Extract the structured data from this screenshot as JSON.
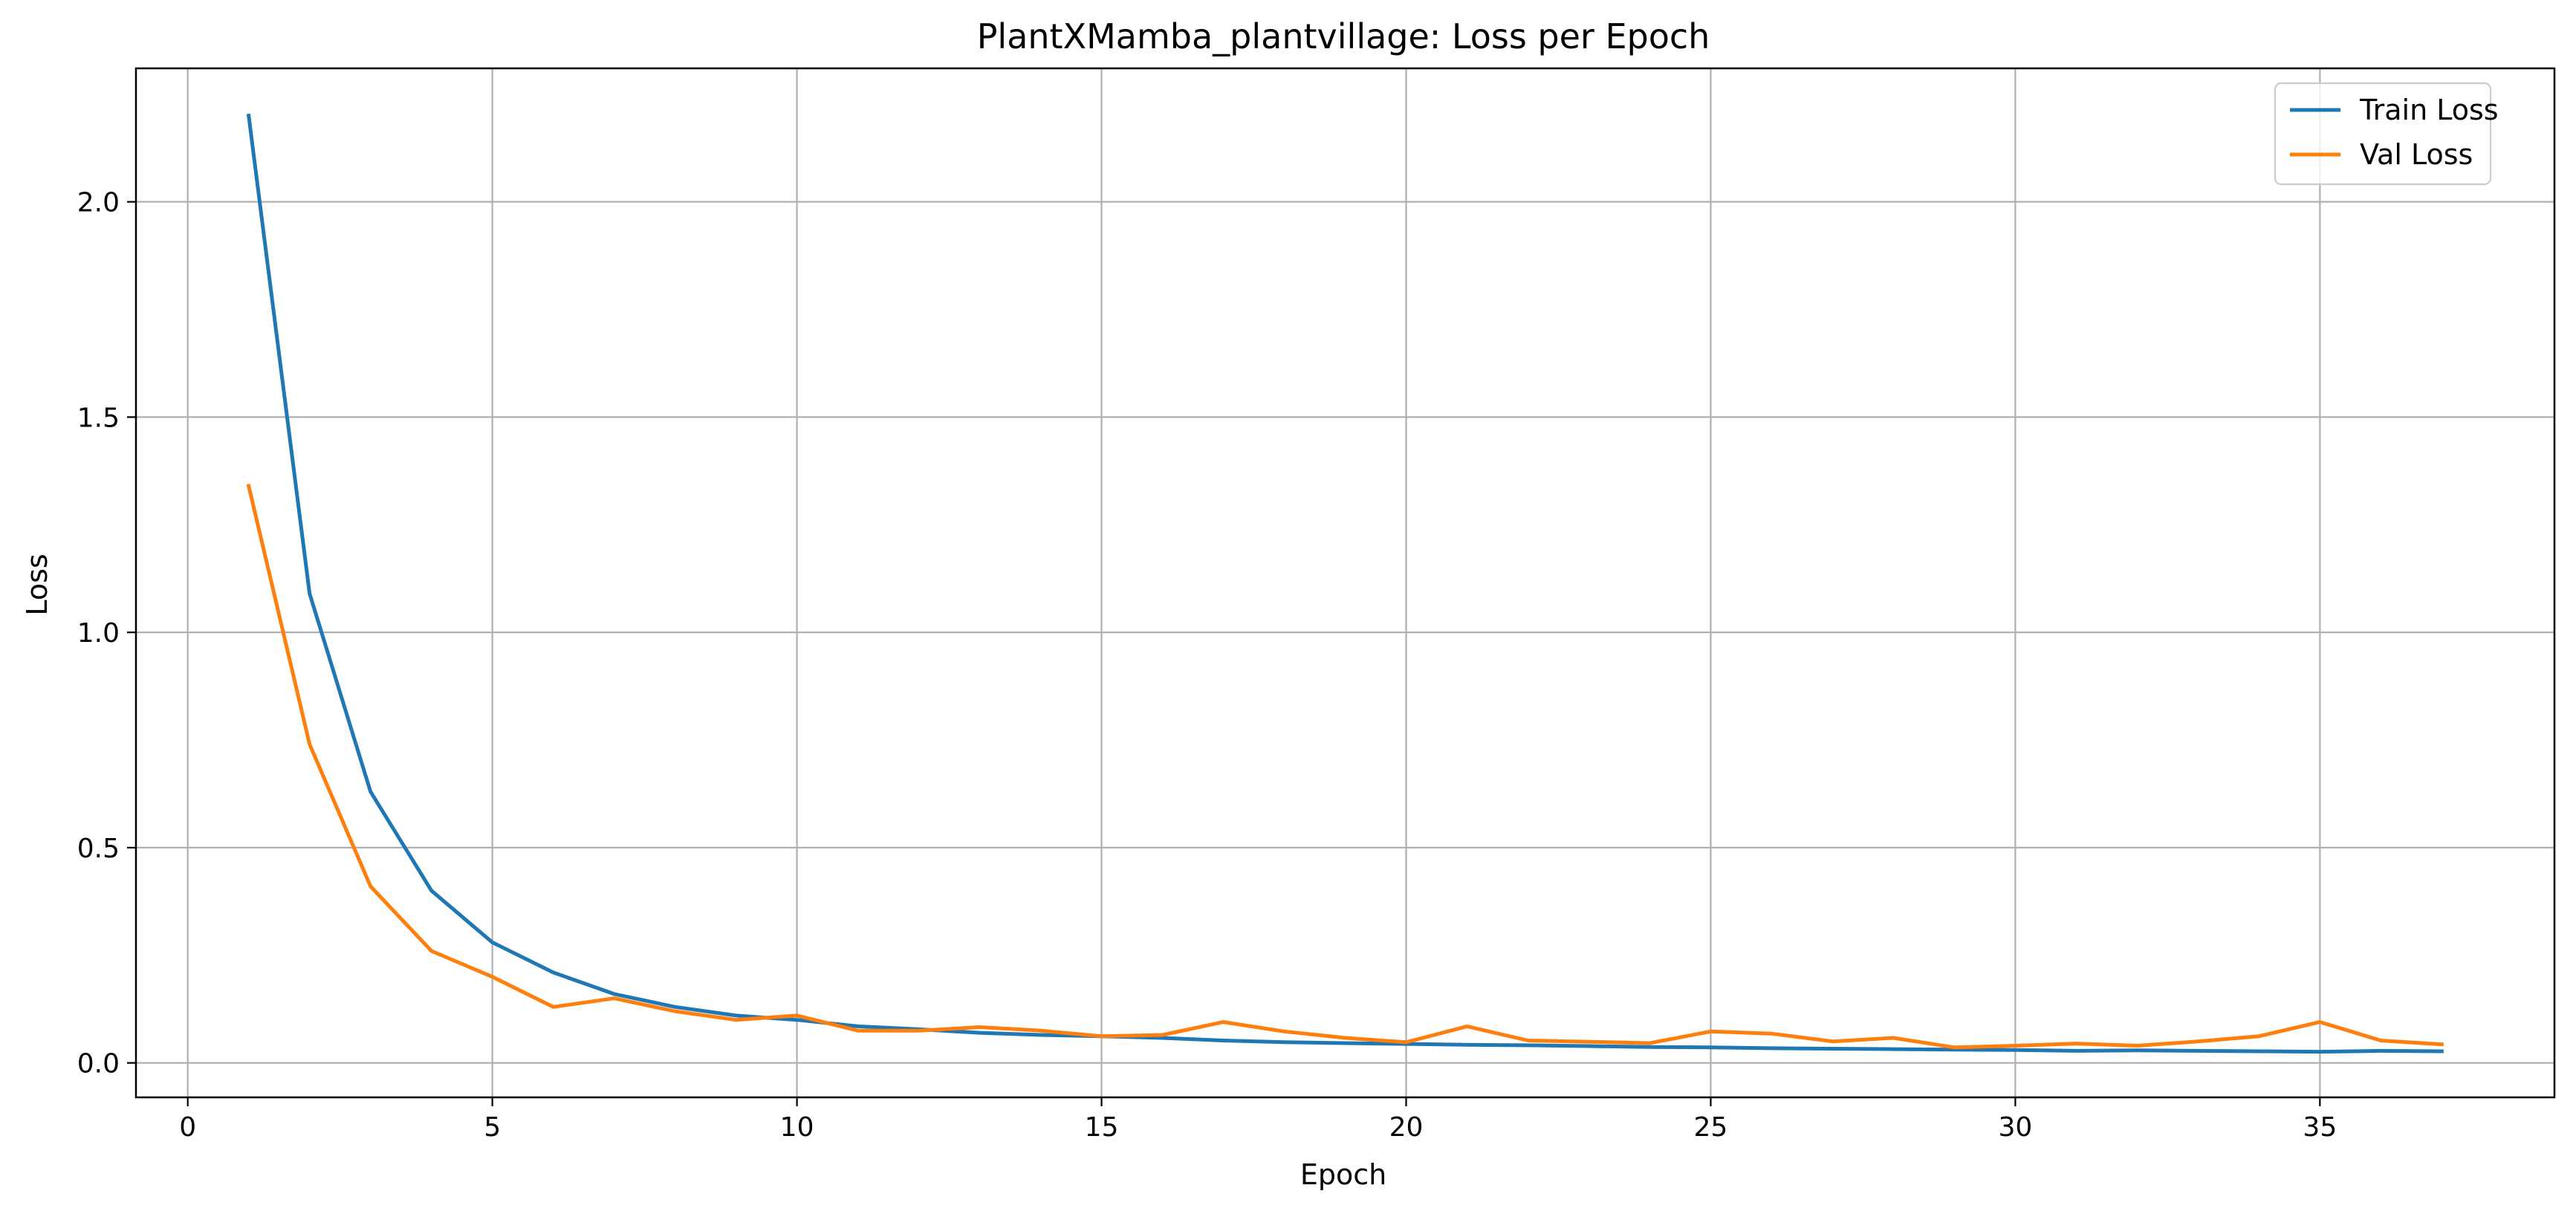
{
  "chart_data": {
    "type": "line",
    "title": "PlantXMamba_plantvillage: Loss per Epoch",
    "xlabel": "Epoch",
    "ylabel": "Loss",
    "xlim": [
      -0.85,
      38.85
    ],
    "ylim": [
      -0.08,
      2.31
    ],
    "xticks": [
      0,
      5,
      10,
      15,
      20,
      25,
      30,
      35
    ],
    "xtick_labels": [
      "0",
      "5",
      "10",
      "15",
      "20",
      "25",
      "30",
      "35"
    ],
    "yticks": [
      0.0,
      0.5,
      1.0,
      1.5,
      2.0
    ],
    "ytick_labels": [
      "0.0",
      "0.5",
      "1.0",
      "1.5",
      "2.0"
    ],
    "grid": true,
    "legend_position": "top-right",
    "x": [
      1,
      2,
      3,
      4,
      5,
      6,
      7,
      8,
      9,
      10,
      11,
      12,
      13,
      14,
      15,
      16,
      17,
      18,
      19,
      20,
      21,
      22,
      23,
      24,
      25,
      26,
      27,
      28,
      29,
      30,
      31,
      32,
      33,
      34,
      35,
      36,
      37
    ],
    "series": [
      {
        "name": "Train Loss",
        "color": "#1f77b4",
        "values": [
          2.2,
          1.09,
          0.63,
          0.4,
          0.28,
          0.21,
          0.16,
          0.13,
          0.11,
          0.1,
          0.085,
          0.078,
          0.07,
          0.065,
          0.062,
          0.058,
          0.052,
          0.048,
          0.046,
          0.044,
          0.042,
          0.041,
          0.039,
          0.037,
          0.036,
          0.034,
          0.033,
          0.032,
          0.031,
          0.03,
          0.028,
          0.029,
          0.028,
          0.027,
          0.026,
          0.028,
          0.027
        ]
      },
      {
        "name": "Val Loss",
        "color": "#ff7f0e",
        "values": [
          1.34,
          0.74,
          0.41,
          0.26,
          0.2,
          0.13,
          0.15,
          0.12,
          0.1,
          0.11,
          0.075,
          0.075,
          0.083,
          0.075,
          0.062,
          0.065,
          0.095,
          0.073,
          0.058,
          0.048,
          0.085,
          0.052,
          0.049,
          0.046,
          0.073,
          0.068,
          0.05,
          0.058,
          0.036,
          0.04,
          0.045,
          0.04,
          0.05,
          0.062,
          0.095,
          0.052,
          0.043
        ]
      }
    ]
  }
}
